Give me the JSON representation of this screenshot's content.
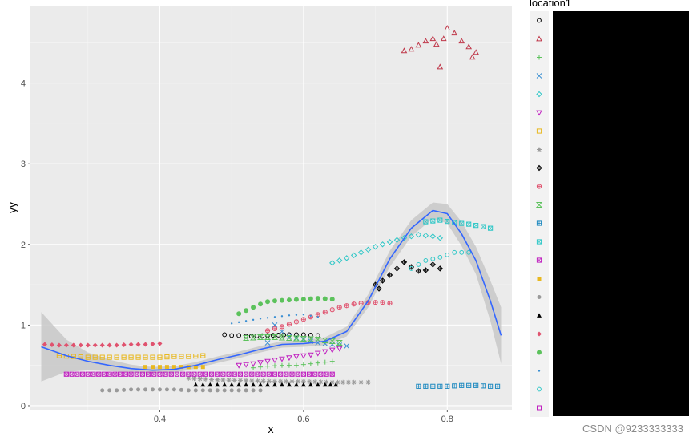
{
  "chart_data": {
    "type": "scatter",
    "xlabel": "x",
    "ylabel": "yy",
    "xlim": [
      0.22,
      0.89
    ],
    "ylim": [
      -0.05,
      4.95
    ],
    "x_ticks": [
      0.4,
      0.6,
      0.8
    ],
    "x_tick_labels": [
      "0.4",
      "0.6",
      "0.8"
    ],
    "y_ticks": [
      0,
      1,
      2,
      3,
      4
    ],
    "y_tick_labels": [
      "0",
      "1",
      "2",
      "3",
      "4"
    ],
    "grid": true,
    "legend_title": "location1",
    "legend_position": "right",
    "series": [
      {
        "color": "#000000",
        "shape": "circle-open",
        "points": [
          [
            0.49,
            0.88
          ],
          [
            0.5,
            0.87
          ],
          [
            0.51,
            0.87
          ],
          [
            0.52,
            0.86
          ],
          [
            0.55,
            0.87
          ],
          [
            0.58,
            0.88
          ],
          [
            0.6,
            0.88
          ],
          [
            0.62,
            0.87
          ]
        ]
      },
      {
        "color": "#C0394B",
        "shape": "triangle-open",
        "points": [
          [
            0.74,
            4.4
          ],
          [
            0.75,
            4.42
          ],
          [
            0.76,
            4.47
          ],
          [
            0.77,
            4.52
          ],
          [
            0.78,
            4.55
          ],
          [
            0.785,
            4.48
          ],
          [
            0.79,
            4.2
          ],
          [
            0.795,
            4.55
          ],
          [
            0.8,
            4.68
          ],
          [
            0.81,
            4.62
          ],
          [
            0.82,
            4.52
          ],
          [
            0.83,
            4.45
          ],
          [
            0.835,
            4.32
          ],
          [
            0.84,
            4.38
          ]
        ]
      },
      {
        "color": "#5CC25C",
        "shape": "plus",
        "points": [
          [
            0.53,
            0.47
          ],
          [
            0.55,
            0.49
          ],
          [
            0.57,
            0.5
          ],
          [
            0.59,
            0.5
          ],
          [
            0.61,
            0.52
          ],
          [
            0.63,
            0.54
          ],
          [
            0.64,
            0.55
          ]
        ]
      },
      {
        "color": "#3A8FD3",
        "shape": "cross",
        "points": [
          [
            0.55,
            0.78
          ],
          [
            0.56,
            1.0
          ],
          [
            0.57,
            0.92
          ],
          [
            0.58,
            0.86
          ],
          [
            0.6,
            0.82
          ],
          [
            0.62,
            0.78
          ],
          [
            0.64,
            0.76
          ],
          [
            0.66,
            0.74
          ]
        ]
      },
      {
        "color": "#2FC7C7",
        "shape": "diamond-open",
        "points": [
          [
            0.64,
            1.77
          ],
          [
            0.66,
            1.83
          ],
          [
            0.68,
            1.9
          ],
          [
            0.7,
            1.97
          ],
          [
            0.72,
            2.03
          ],
          [
            0.74,
            2.08
          ],
          [
            0.76,
            2.12
          ],
          [
            0.78,
            2.1
          ],
          [
            0.79,
            2.08
          ]
        ]
      },
      {
        "color": "#C020C0",
        "shape": "triangle-down-open",
        "points": [
          [
            0.51,
            0.5
          ],
          [
            0.53,
            0.52
          ],
          [
            0.55,
            0.55
          ],
          [
            0.57,
            0.58
          ],
          [
            0.59,
            0.61
          ],
          [
            0.61,
            0.63
          ],
          [
            0.63,
            0.67
          ],
          [
            0.65,
            0.71
          ]
        ]
      },
      {
        "color": "#E8B820",
        "shape": "square-cross",
        "points": [
          [
            0.26,
            0.62
          ],
          [
            0.28,
            0.61
          ],
          [
            0.3,
            0.6
          ],
          [
            0.32,
            0.6
          ],
          [
            0.34,
            0.6
          ],
          [
            0.36,
            0.6
          ],
          [
            0.38,
            0.6
          ],
          [
            0.4,
            0.6
          ],
          [
            0.42,
            0.61
          ],
          [
            0.44,
            0.61
          ],
          [
            0.46,
            0.62
          ]
        ]
      },
      {
        "color": "#9A9A9A",
        "shape": "asterisk",
        "points": [
          [
            0.44,
            0.34
          ],
          [
            0.48,
            0.32
          ],
          [
            0.52,
            0.31
          ],
          [
            0.56,
            0.3
          ],
          [
            0.6,
            0.3
          ],
          [
            0.64,
            0.29
          ],
          [
            0.67,
            0.29
          ],
          [
            0.69,
            0.29
          ]
        ]
      },
      {
        "color": "#000000",
        "shape": "circle-plus",
        "points": [
          [
            0.7,
            1.5
          ],
          [
            0.705,
            1.45
          ],
          [
            0.71,
            1.55
          ],
          [
            0.72,
            1.62
          ],
          [
            0.73,
            1.7
          ],
          [
            0.74,
            1.78
          ],
          [
            0.75,
            1.72
          ],
          [
            0.76,
            1.67
          ],
          [
            0.77,
            1.68
          ],
          [
            0.78,
            1.75
          ],
          [
            0.79,
            1.7
          ]
        ]
      },
      {
        "color": "#E0526E",
        "shape": "circle-cross",
        "points": [
          [
            0.55,
            0.93
          ],
          [
            0.57,
            0.98
          ],
          [
            0.59,
            1.04
          ],
          [
            0.61,
            1.1
          ],
          [
            0.63,
            1.16
          ],
          [
            0.65,
            1.22
          ],
          [
            0.67,
            1.26
          ],
          [
            0.69,
            1.28
          ],
          [
            0.71,
            1.28
          ],
          [
            0.72,
            1.27
          ]
        ]
      },
      {
        "color": "#5CC25C",
        "shape": "hourglass",
        "points": [
          [
            0.52,
            0.84
          ],
          [
            0.54,
            0.85
          ],
          [
            0.56,
            0.85
          ],
          [
            0.58,
            0.84
          ],
          [
            0.6,
            0.83
          ],
          [
            0.62,
            0.82
          ],
          [
            0.64,
            0.8
          ],
          [
            0.65,
            0.78
          ]
        ]
      },
      {
        "color": "#1F8AC0",
        "shape": "square-plus",
        "points": [
          [
            0.76,
            0.24
          ],
          [
            0.78,
            0.24
          ],
          [
            0.8,
            0.24
          ],
          [
            0.82,
            0.25
          ],
          [
            0.84,
            0.25
          ],
          [
            0.86,
            0.24
          ],
          [
            0.87,
            0.24
          ]
        ]
      },
      {
        "color": "#2FC7C7",
        "shape": "square-x",
        "points": [
          [
            0.77,
            2.28
          ],
          [
            0.79,
            2.3
          ],
          [
            0.81,
            2.27
          ],
          [
            0.83,
            2.25
          ],
          [
            0.85,
            2.22
          ],
          [
            0.86,
            2.2
          ]
        ]
      },
      {
        "color": "#C020C0",
        "shape": "square-x-purple",
        "points": [
          [
            0.27,
            0.39
          ],
          [
            0.3,
            0.39
          ],
          [
            0.33,
            0.39
          ],
          [
            0.36,
            0.39
          ],
          [
            0.4,
            0.39
          ],
          [
            0.44,
            0.39
          ],
          [
            0.48,
            0.39
          ],
          [
            0.52,
            0.39
          ],
          [
            0.56,
            0.39
          ],
          [
            0.6,
            0.39
          ],
          [
            0.64,
            0.39
          ]
        ]
      },
      {
        "color": "#E8B820",
        "shape": "square-filled",
        "points": [
          [
            0.38,
            0.48
          ],
          [
            0.4,
            0.48
          ],
          [
            0.42,
            0.48
          ],
          [
            0.44,
            0.48
          ],
          [
            0.46,
            0.48
          ]
        ]
      },
      {
        "color": "#9A9A9A",
        "shape": "circle-filled",
        "points": [
          [
            0.32,
            0.19
          ],
          [
            0.34,
            0.19
          ],
          [
            0.36,
            0.2
          ],
          [
            0.38,
            0.2
          ],
          [
            0.4,
            0.2
          ],
          [
            0.42,
            0.2
          ],
          [
            0.44,
            0.19
          ],
          [
            0.46,
            0.19
          ],
          [
            0.48,
            0.19
          ],
          [
            0.5,
            0.19
          ],
          [
            0.52,
            0.19
          ],
          [
            0.54,
            0.19
          ]
        ]
      },
      {
        "color": "#000000",
        "shape": "triangle-filled",
        "points": [
          [
            0.45,
            0.26
          ],
          [
            0.47,
            0.26
          ],
          [
            0.49,
            0.26
          ],
          [
            0.51,
            0.26
          ],
          [
            0.53,
            0.26
          ],
          [
            0.55,
            0.26
          ],
          [
            0.57,
            0.26
          ],
          [
            0.59,
            0.26
          ],
          [
            0.61,
            0.26
          ],
          [
            0.63,
            0.26
          ],
          [
            0.645,
            0.26
          ]
        ]
      },
      {
        "color": "#E0526E",
        "shape": "diamond-filled",
        "points": [
          [
            0.24,
            0.76
          ],
          [
            0.26,
            0.75
          ],
          [
            0.28,
            0.75
          ],
          [
            0.3,
            0.75
          ],
          [
            0.32,
            0.75
          ],
          [
            0.34,
            0.75
          ],
          [
            0.36,
            0.76
          ],
          [
            0.38,
            0.76
          ],
          [
            0.4,
            0.77
          ]
        ]
      },
      {
        "color": "#5CC25C",
        "shape": "circle-filled-big",
        "points": [
          [
            0.51,
            1.14
          ],
          [
            0.52,
            1.18
          ],
          [
            0.53,
            1.22
          ],
          [
            0.54,
            1.26
          ],
          [
            0.55,
            1.29
          ],
          [
            0.56,
            1.3
          ],
          [
            0.58,
            1.31
          ],
          [
            0.6,
            1.32
          ],
          [
            0.62,
            1.33
          ],
          [
            0.64,
            1.32
          ]
        ]
      },
      {
        "color": "#3A8FD3",
        "shape": "dot-small",
        "points": [
          [
            0.5,
            1.02
          ],
          [
            0.52,
            1.05
          ],
          [
            0.54,
            1.08
          ],
          [
            0.56,
            1.1
          ],
          [
            0.58,
            1.12
          ],
          [
            0.6,
            1.13
          ],
          [
            0.62,
            1.1
          ]
        ]
      },
      {
        "color": "#2FC7C7",
        "shape": "circle-open-cyan",
        "points": [
          [
            0.75,
            1.7
          ],
          [
            0.77,
            1.8
          ],
          [
            0.79,
            1.84
          ],
          [
            0.81,
            1.9
          ],
          [
            0.83,
            1.9
          ]
        ]
      },
      {
        "color": "#C020C0",
        "shape": "square-open",
        "points": []
      }
    ],
    "smooth": {
      "color": "#3366FF",
      "fill": "#C8C8C8",
      "x": [
        0.235,
        0.27,
        0.3,
        0.33,
        0.36,
        0.39,
        0.42,
        0.45,
        0.48,
        0.51,
        0.54,
        0.57,
        0.6,
        0.63,
        0.66,
        0.69,
        0.72,
        0.75,
        0.78,
        0.8,
        0.82,
        0.84,
        0.86,
        0.875
      ],
      "y": [
        0.73,
        0.62,
        0.55,
        0.5,
        0.46,
        0.44,
        0.45,
        0.5,
        0.57,
        0.63,
        0.7,
        0.76,
        0.77,
        0.8,
        0.92,
        1.3,
        1.82,
        2.2,
        2.42,
        2.38,
        2.13,
        1.8,
        1.3,
        0.87
      ],
      "lower": [
        0.3,
        0.42,
        0.44,
        0.43,
        0.41,
        0.4,
        0.41,
        0.46,
        0.53,
        0.59,
        0.66,
        0.72,
        0.73,
        0.75,
        0.86,
        1.22,
        1.72,
        2.1,
        2.32,
        2.26,
        1.98,
        1.63,
        1.05,
        0.52
      ],
      "upper": [
        1.16,
        0.82,
        0.66,
        0.57,
        0.51,
        0.48,
        0.49,
        0.54,
        0.61,
        0.67,
        0.74,
        0.8,
        0.81,
        0.85,
        0.98,
        1.38,
        1.92,
        2.3,
        2.52,
        2.5,
        2.28,
        1.97,
        1.55,
        1.22
      ]
    }
  },
  "watermark": "CSDN @9233333333"
}
